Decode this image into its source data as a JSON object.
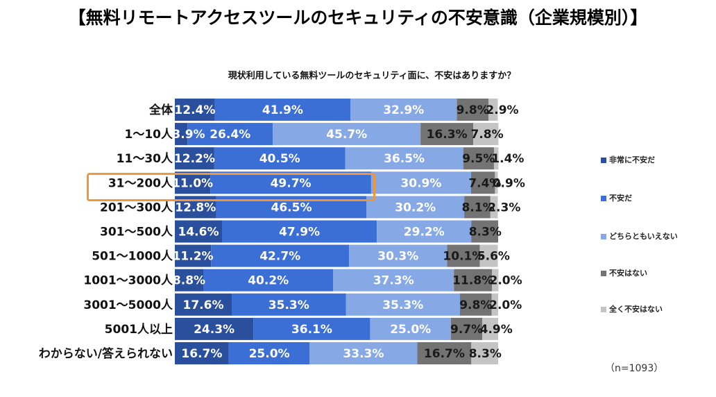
{
  "title": "【無料リモートアクセスツールのセキュリティの不安意識（企業規模別）】",
  "subtitle": "現状利用している無料ツールのセキュリティ面に、不安はありますか？",
  "sample_note": "（n=1093）",
  "colors": {
    "非常に不安だ": "#2a4f9c",
    "不安だ": "#3b6fd6",
    "どちらともいえない": "#86a9e6",
    "不安はない": "#737373",
    "全く不安はない": "#c4c4c4",
    "highlight": "#f0973a"
  },
  "legend": [
    "非常に不安だ",
    "不安だ",
    "どちらともいえない",
    "不安はない",
    "全く不安はない"
  ],
  "chart_data": {
    "type": "bar",
    "orientation": "horizontal-stacked-100",
    "title": "【無料リモートアクセスツールのセキュリティの不安意識（企業規模別）】",
    "subtitle": "現状利用している無料ツールのセキュリティ面に、不安はありますか？",
    "categories": [
      "全体",
      "1〜10人",
      "11〜30人",
      "31〜200人",
      "201〜300人",
      "301〜500人",
      "501〜1000人",
      "1001〜3000人",
      "3001〜5000人",
      "5001人以上",
      "わからない/答えられない"
    ],
    "highlighted_category": "31〜200人",
    "xlim": [
      0,
      100
    ],
    "series": [
      {
        "name": "非常に不安だ",
        "values": [
          12.4,
          3.9,
          12.2,
          11.0,
          12.8,
          14.6,
          11.2,
          8.8,
          17.6,
          24.3,
          16.7
        ]
      },
      {
        "name": "不安だ",
        "values": [
          41.9,
          26.4,
          40.5,
          49.7,
          46.5,
          47.9,
          42.7,
          40.2,
          35.3,
          36.1,
          25.0
        ]
      },
      {
        "name": "どちらともいえない",
        "values": [
          32.9,
          45.7,
          36.5,
          30.9,
          30.2,
          29.2,
          30.3,
          37.3,
          35.3,
          25.0,
          33.3
        ]
      },
      {
        "name": "不安はない",
        "values": [
          9.8,
          16.3,
          9.5,
          7.4,
          8.1,
          8.3,
          10.1,
          11.8,
          9.8,
          9.7,
          16.7
        ]
      },
      {
        "name": "全く不安はない",
        "values": [
          2.9,
          7.8,
          1.4,
          0.9,
          2.3,
          0.0,
          5.6,
          2.0,
          2.0,
          4.9,
          8.3
        ]
      }
    ],
    "value_labels": [
      [
        "12.4%",
        "41.9%",
        "32.9%",
        "9.8%",
        "2.9%"
      ],
      [
        "3.9%",
        "26.4%",
        "45.7%",
        "16.3%",
        "7.8%"
      ],
      [
        "12.2%",
        "40.5%",
        "36.5%",
        "9.5%",
        "1.4%"
      ],
      [
        "11.0%",
        "49.7%",
        "30.9%",
        "7.4%",
        "0.9%"
      ],
      [
        "12.8%",
        "46.5%",
        "30.2%",
        "8.1%",
        "2.3%"
      ],
      [
        "14.6%",
        "47.9%",
        "29.2%",
        "8.3%",
        ""
      ],
      [
        "11.2%",
        "42.7%",
        "30.3%",
        "10.1%",
        "5.6%"
      ],
      [
        "8.8%",
        "40.2%",
        "37.3%",
        "11.8%",
        "2.0%"
      ],
      [
        "17.6%",
        "35.3%",
        "35.3%",
        "9.8%",
        "2.0%"
      ],
      [
        "24.3%",
        "36.1%",
        "25.0%",
        "9.7%",
        "4.9%"
      ],
      [
        "16.7%",
        "25.0%",
        "33.3%",
        "16.7%",
        "8.3%"
      ]
    ],
    "legend_position": "right"
  }
}
